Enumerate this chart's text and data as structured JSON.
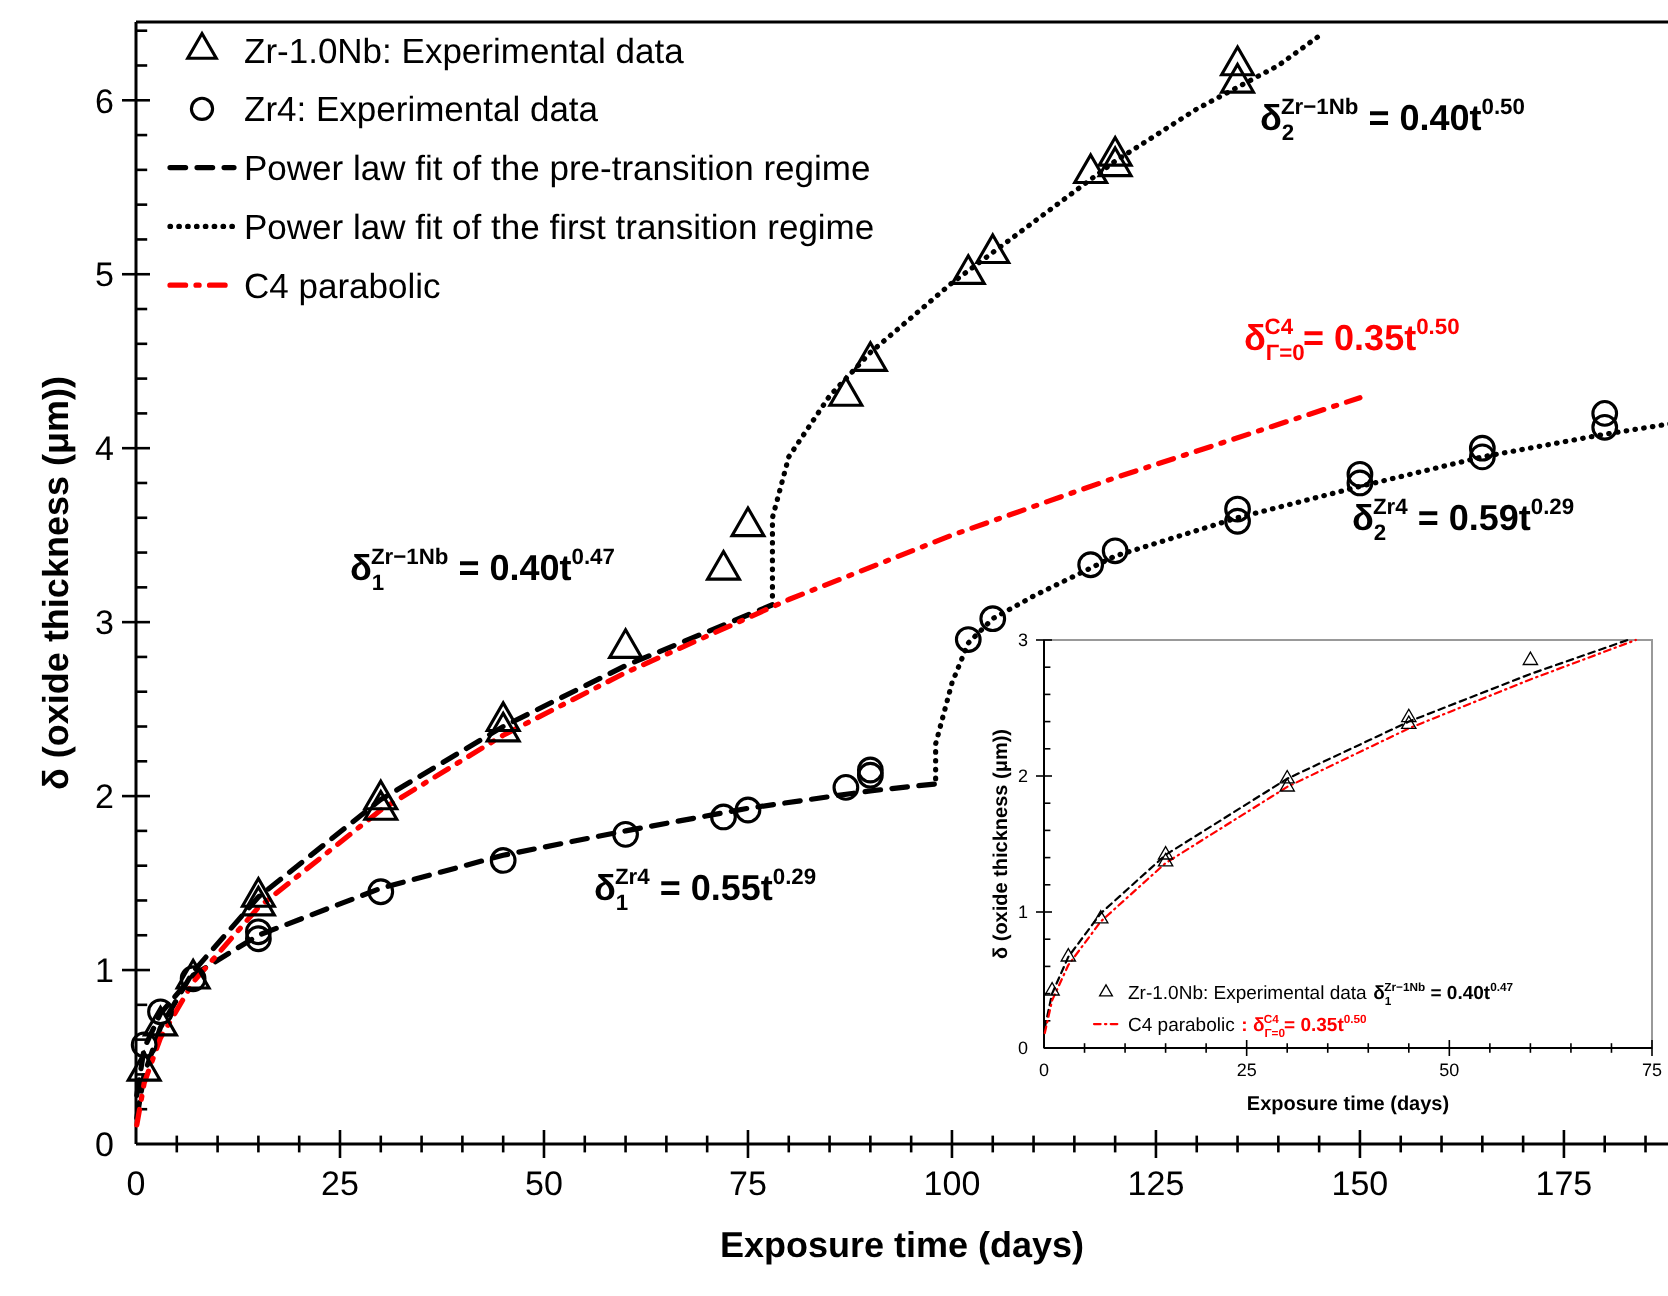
{
  "chart_data": [
    {
      "type": "line",
      "xlabel": "Exposure time (days)",
      "ylabel": "δ (oxide thickness (μm))",
      "xlim": [
        0,
        188
      ],
      "ylim": [
        0,
        6.45
      ],
      "xticks": [
        0,
        {
          "value": 5,
          "label": null
        },
        {
          "value": 10,
          "label": null
        },
        {
          "value": 15,
          "label": null
        },
        {
          "value": 20,
          "label": null
        },
        25,
        {
          "value": 30,
          "label": null
        },
        {
          "value": 35,
          "label": null
        },
        {
          "value": 40,
          "label": null
        },
        {
          "value": 45,
          "label": null
        },
        50,
        {
          "value": 55,
          "label": null
        },
        {
          "value": 60,
          "label": null
        },
        {
          "value": 65,
          "label": null
        },
        {
          "value": 70,
          "label": null
        },
        75,
        {
          "value": 80,
          "label": null
        },
        {
          "value": 85,
          "label": null
        },
        {
          "value": 90,
          "label": null
        },
        {
          "value": 95,
          "label": null
        },
        100,
        {
          "value": 105,
          "label": null
        },
        {
          "value": 110,
          "label": null
        },
        {
          "value": 115,
          "label": null
        },
        {
          "value": 120,
          "label": null
        },
        125,
        {
          "value": 130,
          "label": null
        },
        {
          "value": 135,
          "label": null
        },
        {
          "value": 140,
          "label": null
        },
        {
          "value": 145,
          "label": null
        },
        150,
        {
          "value": 155,
          "label": null
        },
        {
          "value": 160,
          "label": null
        },
        {
          "value": 165,
          "label": null
        },
        {
          "value": 170,
          "label": null
        },
        175,
        {
          "value": 180,
          "label": null
        },
        {
          "value": 185,
          "label": null
        }
      ],
      "yticks": [
        0,
        {
          "value": 0.2,
          "label": null
        },
        {
          "value": 0.4,
          "label": null
        },
        {
          "value": 0.6,
          "label": null
        },
        {
          "value": 0.8,
          "label": null
        },
        1,
        {
          "value": 1.2,
          "label": null
        },
        {
          "value": 1.4,
          "label": null
        },
        {
          "value": 1.6,
          "label": null
        },
        {
          "value": 1.8,
          "label": null
        },
        2,
        {
          "value": 2.2,
          "label": null
        },
        {
          "value": 2.4,
          "label": null
        },
        {
          "value": 2.6,
          "label": null
        },
        {
          "value": 2.8,
          "label": null
        },
        3,
        {
          "value": 3.2,
          "label": null
        },
        {
          "value": 3.4,
          "label": null
        },
        {
          "value": 3.6,
          "label": null
        },
        {
          "value": 3.8,
          "label": null
        },
        4,
        {
          "value": 4.2,
          "label": null
        },
        {
          "value": 4.4,
          "label": null
        },
        {
          "value": 4.6,
          "label": null
        },
        {
          "value": 4.8,
          "label": null
        },
        5,
        {
          "value": 5.2,
          "label": null
        },
        {
          "value": 5.4,
          "label": null
        },
        {
          "value": 5.6,
          "label": null
        },
        {
          "value": 5.8,
          "label": null
        },
        6,
        {
          "value": 6.2,
          "label": null
        },
        {
          "value": 6.4,
          "label": null
        }
      ],
      "legend": "top left",
      "series": [
        {
          "name": "Zr-1.0Nb: Experimental data",
          "type": "scatter",
          "marker": "triangle",
          "color": "#000000",
          "x": [
            1,
            3,
            7,
            15,
            15,
            30,
            30,
            45,
            45,
            60,
            72,
            75,
            87,
            90,
            102,
            105,
            117,
            120,
            120,
            135,
            135
          ],
          "values": [
            0.42,
            0.68,
            0.95,
            1.37,
            1.42,
            1.92,
            1.98,
            2.37,
            2.43,
            2.85,
            3.3,
            3.55,
            4.3,
            4.5,
            5.0,
            5.12,
            5.58,
            5.62,
            5.68,
            6.1,
            6.2
          ]
        },
        {
          "name": "Zr4: Experimental data",
          "type": "scatter",
          "marker": "circle",
          "color": "#000000",
          "x": [
            1,
            3,
            7,
            15,
            15,
            30,
            45,
            60,
            72,
            75,
            87,
            90,
            90,
            102,
            105,
            117,
            120,
            135,
            135,
            150,
            150,
            165,
            165,
            180,
            180
          ],
          "values": [
            0.57,
            0.76,
            0.95,
            1.18,
            1.22,
            1.45,
            1.63,
            1.78,
            1.88,
            1.92,
            2.05,
            2.12,
            2.15,
            2.9,
            3.02,
            3.33,
            3.41,
            3.58,
            3.65,
            3.8,
            3.85,
            3.95,
            4.0,
            4.12,
            4.2
          ]
        },
        {
          "name": "Power law fit of the pre-transition regime",
          "type": "line",
          "line_style": "dashed",
          "color": "#000000",
          "x": [
            0.1,
            1,
            3,
            7,
            15,
            30,
            45,
            60,
            78
          ],
          "values": [
            0.15,
            0.4,
            0.67,
            0.99,
            1.42,
            1.98,
            2.4,
            2.75,
            3.1
          ]
        },
        {
          "type": "line",
          "line_style": "dashed",
          "color": "#000000",
          "x": [
            0.1,
            1,
            3,
            7,
            15,
            30,
            45,
            60,
            75,
            90,
            98
          ],
          "values": [
            0.28,
            0.55,
            0.75,
            0.97,
            1.2,
            1.47,
            1.66,
            1.8,
            1.93,
            2.03,
            2.07
          ]
        },
        {
          "name": "Power law fit of the first transition regime",
          "type": "line",
          "line_style": "dotted",
          "color": "#000000",
          "x": [
            78,
            78,
            80,
            85,
            90,
            100,
            110,
            120,
            130,
            140,
            145
          ],
          "values": [
            3.15,
            3.6,
            3.95,
            4.3,
            4.55,
            4.95,
            5.3,
            5.65,
            5.95,
            6.2,
            6.37
          ]
        },
        {
          "type": "line",
          "line_style": "dotted",
          "color": "#000000",
          "x": [
            98,
            98,
            100,
            102,
            105,
            110,
            120,
            135,
            150,
            165,
            180,
            188
          ],
          "values": [
            2.1,
            2.3,
            2.65,
            2.88,
            3.02,
            3.15,
            3.38,
            3.6,
            3.78,
            3.95,
            4.08,
            4.14
          ]
        },
        {
          "name": "C4 parabolic",
          "type": "line",
          "line_style": "dashdot",
          "color": "#ff0000",
          "x": [
            0.1,
            1,
            3,
            7,
            15,
            30,
            45,
            60,
            80,
            100,
            120,
            150
          ],
          "values": [
            0.11,
            0.35,
            0.61,
            0.93,
            1.36,
            1.92,
            2.35,
            2.71,
            3.13,
            3.5,
            3.83,
            4.29
          ]
        }
      ],
      "annotations": [
        "δ$_{1}$$^{Zr−1Nb}$ = 0.40t$^{0.47}$",
        "δ$_{2}$$^{Zr−1Nb}$ = 0.40t$^{0.50}$",
        "δ$_{Γ=0}$$^{C4}$ = 0.35t$^{0.50}$",
        "δ$_{2}$$^{Zr4}$ = 0.59t$^{0.29}$",
        "δ$_{1}$$^{Zr4}$ = 0.55t$^{0.29}$"
      ]
    },
    {
      "type": "line",
      "xlabel": "Exposure time (days)",
      "ylabel": "δ (oxide thickness (μm))",
      "xlim": [
        0,
        75
      ],
      "ylim": [
        0,
        3
      ],
      "xticks": [
        0,
        {
          "value": 5,
          "label": null
        },
        {
          "value": 10,
          "label": null
        },
        {
          "value": 15,
          "label": null
        },
        {
          "value": 20,
          "label": null
        },
        25,
        {
          "value": 30,
          "label": null
        },
        {
          "value": 35,
          "label": null
        },
        {
          "value": 40,
          "label": null
        },
        {
          "value": 45,
          "label": null
        },
        50,
        {
          "value": 55,
          "label": null
        },
        {
          "value": 60,
          "label": null
        },
        {
          "value": 65,
          "label": null
        },
        {
          "value": 70,
          "label": null
        },
        75
      ],
      "yticks": [
        0,
        {
          "value": 0.2,
          "label": null
        },
        {
          "value": 0.4,
          "label": null
        },
        {
          "value": 0.6,
          "label": null
        },
        {
          "value": 0.8,
          "label": null
        },
        1,
        {
          "value": 1.2,
          "label": null
        },
        {
          "value": 1.4,
          "label": null
        },
        {
          "value": 1.6,
          "label": null
        },
        {
          "value": 1.8,
          "label": null
        },
        2,
        {
          "value": 2.2,
          "label": null
        },
        {
          "value": 2.4,
          "label": null
        },
        {
          "value": 2.6,
          "label": null
        },
        {
          "value": 2.8,
          "label": null
        },
        3
      ],
      "legend": "bottom left",
      "series": [
        {
          "name": "Zr-1.0Nb: Experimental data",
          "type": "scatter",
          "marker": "triangle",
          "color": "#000000",
          "x": [
            1,
            3,
            7,
            15,
            15,
            30,
            30,
            45,
            45,
            60
          ],
          "values": [
            0.42,
            0.67,
            0.95,
            1.37,
            1.42,
            1.92,
            1.98,
            2.38,
            2.43,
            2.85
          ]
        },
        {
          "type": "line",
          "line_style": "dashed",
          "color": "#000000",
          "x": [
            0.1,
            1,
            3,
            7,
            15,
            30,
            45,
            60,
            72
          ],
          "values": [
            0.15,
            0.4,
            0.67,
            0.99,
            1.42,
            1.98,
            2.4,
            2.75,
            3.0
          ]
        },
        {
          "name": "C4 parabolic",
          "type": "line",
          "line_style": "dashdot",
          "color": "#ff0000",
          "x": [
            0.1,
            1,
            3,
            7,
            15,
            30,
            45,
            60,
            73
          ],
          "values": [
            0.11,
            0.35,
            0.61,
            0.93,
            1.36,
            1.92,
            2.35,
            2.71,
            3.0
          ]
        }
      ],
      "annotations": [
        "δ$_{1}$$^{Zr−1Nb}$ = 0.40t$^{0.47}$",
        ": δ$_{Γ=0}$$^{C4}$ = 0.35t$^{0.50}$"
      ]
    }
  ]
}
